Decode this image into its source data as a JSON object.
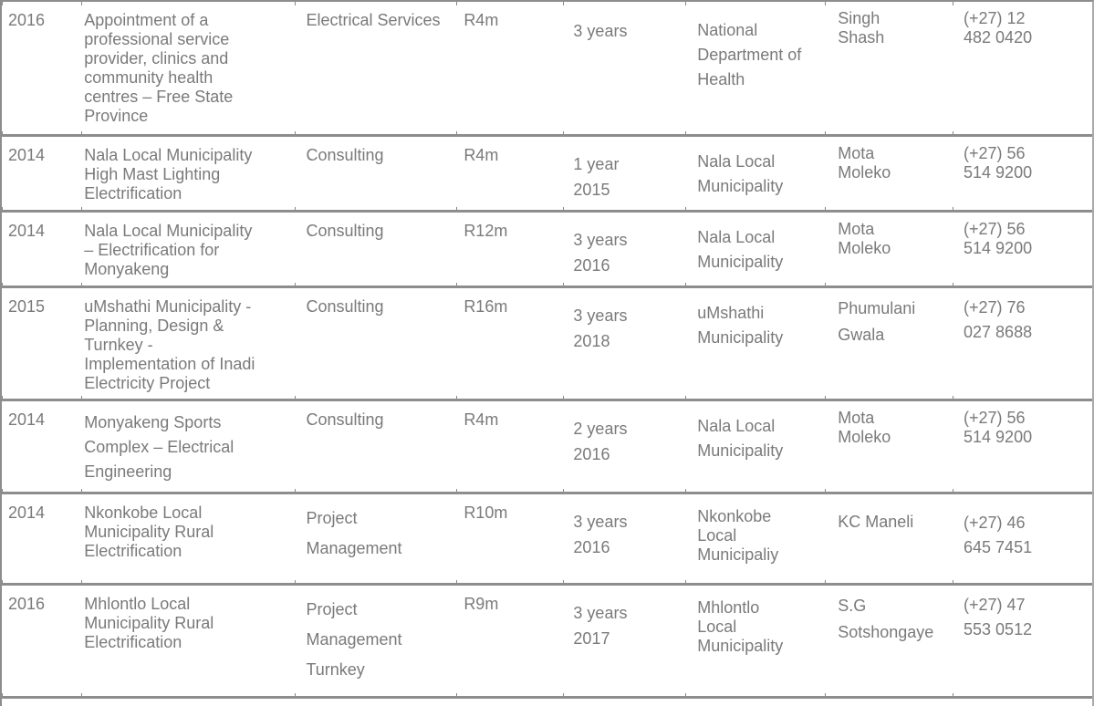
{
  "colors": {
    "text": "#7a7a7a",
    "border": "#8d8d8d",
    "background": "#ffffff"
  },
  "table": {
    "column_keys": [
      "year",
      "project",
      "service",
      "value",
      "duration",
      "client",
      "contact-person",
      "phone"
    ],
    "rows": [
      [
        "2016",
        "Appointment of a\nprofessional service\nprovider, clinics and\ncommunity health\ncentres – Free State\nProvince",
        "Electrical Services",
        "R4m",
        "3 years",
        "National\nDepartment of\nHealth",
        "Singh\nShash",
        "(+27) 12\n482 0420"
      ],
      [
        "2014",
        "Nala Local Municipality\nHigh Mast Lighting\nElectrification",
        "Consulting",
        "R4m",
        "1 year\n2015",
        "Nala Local\nMunicipality",
        "Mota\nMoleko",
        "(+27) 56\n514 9200"
      ],
      [
        "2014",
        "Nala Local Municipality\n– Electrification for\nMonyakeng",
        "Consulting",
        "R12m",
        "3 years\n2016",
        "Nala Local\nMunicipality",
        "Mota\nMoleko",
        "(+27) 56\n514 9200"
      ],
      [
        "2015",
        "uMshathi Municipality -\nPlanning, Design &\nTurnkey -\nImplementation of Inadi\nElectricity Project",
        "Consulting",
        "R16m",
        "3 years\n2018",
        "uMshathi\nMunicipality",
        "Phumulani\nGwala",
        "(+27) 76\n027 8688"
      ],
      [
        "2014",
        "Monyakeng Sports\nComplex – Electrical\nEngineering",
        "Consulting",
        "R4m",
        "2 years\n2016",
        "Nala Local\nMunicipality",
        "Mota\nMoleko",
        "(+27) 56\n514 9200"
      ],
      [
        "2014",
        "Nkonkobe Local\nMunicipality Rural\nElectrification",
        "Project\nManagement",
        "R10m",
        "3 years\n2016",
        "Nkonkobe\nLocal\nMunicipaliy",
        "KC Maneli",
        "(+27) 46\n645 7451"
      ],
      [
        "2016",
        "Mhlontlo Local\nMunicipality Rural\nElectrification",
        "Project\nManagement\nTurnkey",
        "R9m",
        "3 years\n2017",
        "Mhlontlo\nLocal\nMunicipality",
        "S.G\nSotshongaye",
        "(+27) 47\n553 0512"
      ],
      [
        "",
        "",
        "",
        "",
        "",
        "",
        "",
        ""
      ]
    ]
  }
}
